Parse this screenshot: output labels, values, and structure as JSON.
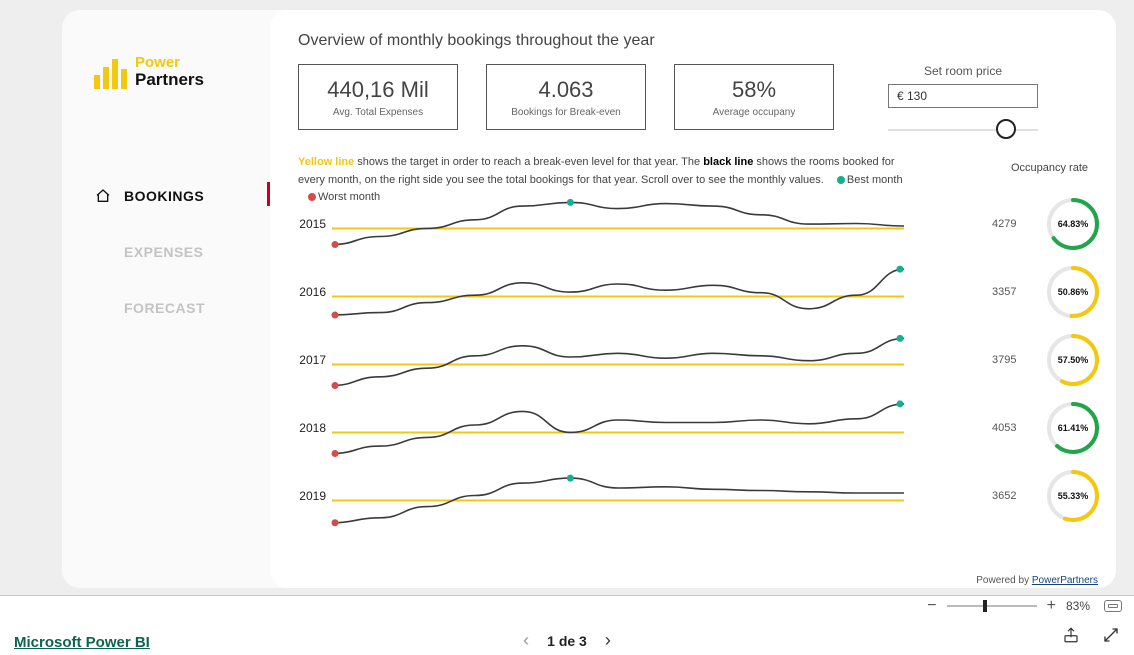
{
  "brand": {
    "line1": "Power",
    "line2": "Partners"
  },
  "nav": {
    "items": [
      {
        "id": "bookings",
        "label": "BOOKINGS",
        "active": true
      },
      {
        "id": "expenses",
        "label": "EXPENSES",
        "active": false
      },
      {
        "id": "forecast",
        "label": "FORECAST",
        "active": false
      }
    ]
  },
  "title": "Overview of monthly bookings throughout the year",
  "kpis": [
    {
      "value": "440,16 Mil",
      "label": "Avg. Total Expenses"
    },
    {
      "value": "4.063",
      "label": "Bookings for Break-even"
    },
    {
      "value": "58%",
      "label": "Average occupany"
    }
  ],
  "room_price": {
    "title": "Set room price",
    "value": "€ 130",
    "slider_pct": 72
  },
  "explainer": {
    "yellow_word": "Yellow line",
    "t1": " shows the target in order to reach a break-even level for that year. The ",
    "black_word": "black line",
    "t2": " shows the rooms booked for every month, on the right side you see the total bookings for that year. Scroll over to see the monthly values.",
    "legend_best": "Best month",
    "legend_worst": "Worst month",
    "best_color": "#15b090",
    "worst_color": "#d84a4a"
  },
  "occ_header": "Occupancy rate",
  "chart_colors": {
    "target_line": "#f2c811",
    "actual_line": "#3a3a3a",
    "best_dot": "#15b090",
    "worst_dot": "#d84a4a"
  },
  "gauge_colors": {
    "track": "#e6e6e6",
    "green": "#21a54b",
    "yellow": "#f2c811"
  },
  "years": [
    {
      "year": "2015",
      "total": "4279",
      "gauge_pct": 64.83,
      "gauge_label": "64.83%",
      "gauge_color": "green",
      "target_y": 0.62,
      "best_idx": 5,
      "worst_idx": 0,
      "best_edge": false,
      "actual": [
        0.88,
        0.75,
        0.62,
        0.48,
        0.26,
        0.2,
        0.3,
        0.22,
        0.26,
        0.4,
        0.55,
        0.54,
        0.58
      ]
    },
    {
      "year": "2016",
      "total": "3357",
      "gauge_pct": 50.86,
      "gauge_label": "50.86%",
      "gauge_color": "yellow",
      "target_y": 0.62,
      "best_idx": 12,
      "worst_idx": 0,
      "best_edge": true,
      "actual": [
        0.92,
        0.88,
        0.72,
        0.6,
        0.4,
        0.55,
        0.42,
        0.52,
        0.44,
        0.56,
        0.82,
        0.6,
        0.18
      ]
    },
    {
      "year": "2017",
      "total": "3795",
      "gauge_pct": 57.5,
      "gauge_label": "57.50%",
      "gauge_color": "yellow",
      "target_y": 0.62,
      "best_idx": 12,
      "worst_idx": 0,
      "best_edge": true,
      "actual": [
        0.96,
        0.82,
        0.68,
        0.48,
        0.32,
        0.5,
        0.44,
        0.52,
        0.44,
        0.48,
        0.56,
        0.44,
        0.2
      ]
    },
    {
      "year": "2018",
      "total": "4053",
      "gauge_pct": 61.41,
      "gauge_label": "61.41%",
      "gauge_color": "green",
      "target_y": 0.62,
      "best_idx": 12,
      "worst_idx": 0,
      "best_edge": true,
      "actual": [
        0.96,
        0.84,
        0.7,
        0.5,
        0.28,
        0.62,
        0.42,
        0.46,
        0.46,
        0.42,
        0.48,
        0.4,
        0.16
      ]
    },
    {
      "year": "2019",
      "total": "3652",
      "gauge_pct": 55.33,
      "gauge_label": "55.33%",
      "gauge_color": "yellow",
      "target_y": 0.62,
      "best_idx": 5,
      "worst_idx": 0,
      "best_edge": false,
      "actual": [
        0.98,
        0.9,
        0.72,
        0.54,
        0.34,
        0.26,
        0.42,
        0.4,
        0.44,
        0.46,
        0.48,
        0.5,
        0.5
      ]
    }
  ],
  "powered": {
    "prefix": "Powered by ",
    "link": "PowerPartners"
  },
  "zoom": {
    "pct_label": "83%",
    "handle_pct": 40
  },
  "footer": {
    "pbi": "Microsoft Power BI",
    "page_label": "1 de 3"
  }
}
